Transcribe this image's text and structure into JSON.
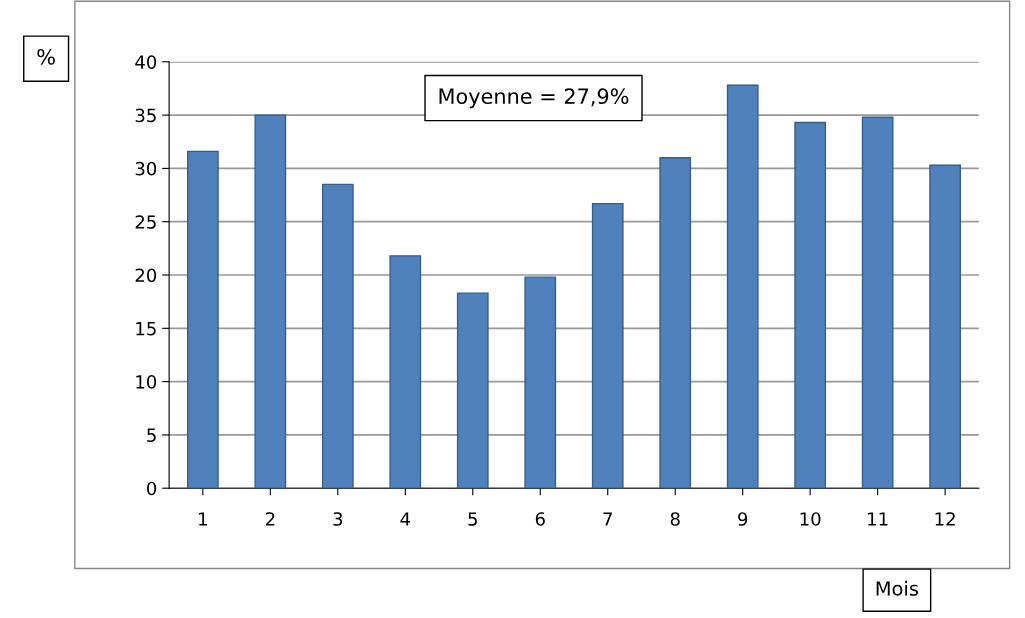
{
  "chart_data": {
    "type": "bar",
    "categories": [
      "1",
      "2",
      "3",
      "4",
      "5",
      "6",
      "7",
      "8",
      "9",
      "10",
      "11",
      "12"
    ],
    "values": [
      31.6,
      35.0,
      28.5,
      21.8,
      18.3,
      19.8,
      26.7,
      31.0,
      37.8,
      34.3,
      34.8,
      30.3
    ],
    "color": "#4f81bd",
    "ylabel": "%",
    "xlabel": "Mois",
    "annotations": [
      "Moyenne = 27,9%"
    ],
    "ylim": [
      0,
      40
    ],
    "yticks": [
      0,
      5,
      10,
      15,
      20,
      25,
      30,
      35,
      40
    ],
    "grid": "y",
    "legend": false
  }
}
